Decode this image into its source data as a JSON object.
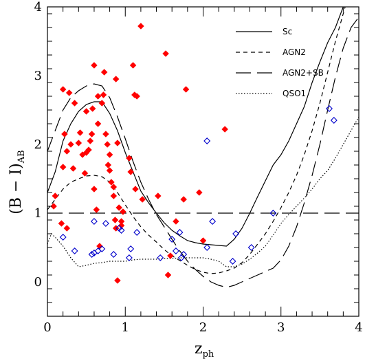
{
  "chart_data": {
    "type": "scatter",
    "xlim": [
      0,
      4
    ],
    "ylim": [
      -0.5,
      4
    ],
    "xlabel": "z",
    "xlabel_sub": "ph",
    "ylabel": "(B − I)",
    "ylabel_sub": "AB",
    "x_ticks": [
      0,
      1,
      2,
      3,
      4
    ],
    "y_ticks": [
      0,
      1,
      2,
      3,
      4
    ],
    "x_tick_labels": [
      "0",
      "1",
      "2",
      "3",
      "4"
    ],
    "y_tick_labels": [
      "0",
      "1",
      "2",
      "3",
      "4"
    ],
    "grid": false,
    "legend_position": "top-right",
    "colors": {
      "red_points": "#ff0000",
      "blue_points": "#0000cc",
      "lines": "#000000"
    },
    "reference_line": {
      "y": 1.0,
      "style": "long-dash"
    },
    "series": [
      {
        "name": "Sc",
        "kind": "line",
        "style": "solid",
        "points": [
          [
            0,
            1.3
          ],
          [
            0.1,
            1.6
          ],
          [
            0.2,
            2.05
          ],
          [
            0.3,
            2.3
          ],
          [
            0.4,
            2.48
          ],
          [
            0.5,
            2.58
          ],
          [
            0.6,
            2.62
          ],
          [
            0.7,
            2.62
          ],
          [
            0.8,
            2.45
          ],
          [
            0.9,
            2.2
          ],
          [
            1.0,
            1.88
          ],
          [
            1.1,
            1.6
          ],
          [
            1.2,
            1.32
          ],
          [
            1.3,
            1.15
          ],
          [
            1.4,
            1.0
          ],
          [
            1.5,
            0.86
          ],
          [
            1.6,
            0.75
          ],
          [
            1.7,
            0.67
          ],
          [
            1.8,
            0.6
          ],
          [
            1.9,
            0.57
          ],
          [
            2.0,
            0.55
          ],
          [
            2.1,
            0.54
          ],
          [
            2.2,
            0.53
          ],
          [
            2.3,
            0.52
          ],
          [
            2.4,
            0.62
          ],
          [
            2.5,
            0.78
          ],
          [
            2.6,
            1.0
          ],
          [
            2.7,
            1.24
          ],
          [
            2.8,
            1.47
          ],
          [
            2.9,
            1.7
          ],
          [
            3.0,
            1.85
          ],
          [
            3.1,
            2.05
          ],
          [
            3.2,
            2.3
          ],
          [
            3.3,
            2.55
          ],
          [
            3.4,
            2.9
          ],
          [
            3.5,
            3.2
          ],
          [
            3.6,
            3.48
          ],
          [
            3.7,
            3.7
          ],
          [
            3.8,
            4.0
          ]
        ]
      },
      {
        "name": "AGN2",
        "kind": "line",
        "style": "short-dash",
        "points": [
          [
            0,
            1.05
          ],
          [
            0.1,
            1.2
          ],
          [
            0.2,
            1.35
          ],
          [
            0.3,
            1.45
          ],
          [
            0.4,
            1.5
          ],
          [
            0.5,
            1.54
          ],
          [
            0.6,
            1.55
          ],
          [
            0.7,
            1.53
          ],
          [
            0.8,
            1.45
          ],
          [
            0.9,
            1.3
          ],
          [
            1.0,
            1.12
          ],
          [
            1.1,
            0.95
          ],
          [
            1.2,
            0.8
          ],
          [
            1.3,
            0.68
          ],
          [
            1.4,
            0.58
          ],
          [
            1.5,
            0.47
          ],
          [
            1.6,
            0.38
          ],
          [
            1.7,
            0.31
          ],
          [
            1.8,
            0.24
          ],
          [
            1.9,
            0.18
          ],
          [
            2.0,
            0.14
          ],
          [
            2.1,
            0.12
          ],
          [
            2.2,
            0.13
          ],
          [
            2.3,
            0.16
          ],
          [
            2.4,
            0.2
          ],
          [
            2.5,
            0.28
          ],
          [
            2.6,
            0.4
          ],
          [
            2.7,
            0.55
          ],
          [
            2.8,
            0.7
          ],
          [
            2.9,
            0.88
          ],
          [
            3.0,
            1.08
          ],
          [
            3.1,
            1.3
          ],
          [
            3.2,
            1.55
          ],
          [
            3.3,
            1.85
          ],
          [
            3.4,
            2.2
          ],
          [
            3.5,
            2.6
          ],
          [
            3.6,
            3.05
          ],
          [
            3.7,
            3.5
          ],
          [
            3.8,
            3.9
          ],
          [
            3.85,
            4.1
          ]
        ]
      },
      {
        "name": "AGN2+SB",
        "kind": "line",
        "style": "long-dash",
        "points": [
          [
            0,
            1.9
          ],
          [
            0.1,
            2.2
          ],
          [
            0.2,
            2.5
          ],
          [
            0.3,
            2.68
          ],
          [
            0.4,
            2.78
          ],
          [
            0.5,
            2.85
          ],
          [
            0.6,
            2.88
          ],
          [
            0.7,
            2.85
          ],
          [
            0.8,
            2.68
          ],
          [
            0.9,
            2.4
          ],
          [
            1.0,
            2.08
          ],
          [
            1.1,
            1.75
          ],
          [
            1.2,
            1.45
          ],
          [
            1.3,
            1.2
          ],
          [
            1.4,
            0.98
          ],
          [
            1.5,
            0.8
          ],
          [
            1.6,
            0.62
          ],
          [
            1.7,
            0.45
          ],
          [
            1.8,
            0.3
          ],
          [
            1.9,
            0.18
          ],
          [
            2.0,
            0.08
          ],
          [
            2.1,
            0.0
          ],
          [
            2.2,
            -0.05
          ],
          [
            2.3,
            -0.08
          ],
          [
            2.4,
            -0.05
          ],
          [
            2.5,
            0.0
          ],
          [
            2.6,
            0.05
          ],
          [
            2.7,
            0.1
          ],
          [
            2.8,
            0.15
          ],
          [
            2.9,
            0.2
          ],
          [
            3.0,
            0.32
          ],
          [
            3.1,
            0.52
          ],
          [
            3.2,
            0.8
          ],
          [
            3.3,
            1.15
          ],
          [
            3.4,
            1.55
          ],
          [
            3.5,
            2.0
          ],
          [
            3.6,
            2.5
          ],
          [
            3.7,
            2.98
          ],
          [
            3.8,
            3.4
          ],
          [
            3.9,
            3.7
          ],
          [
            4.0,
            3.85
          ]
        ]
      },
      {
        "name": "QSO1",
        "kind": "line",
        "style": "dotted",
        "points": [
          [
            0,
            0.55
          ],
          [
            0.05,
            0.7
          ],
          [
            0.1,
            0.65
          ],
          [
            0.2,
            0.52
          ],
          [
            0.3,
            0.35
          ],
          [
            0.4,
            0.22
          ],
          [
            0.5,
            0.24
          ],
          [
            0.6,
            0.27
          ],
          [
            0.7,
            0.28
          ],
          [
            0.8,
            0.3
          ],
          [
            0.9,
            0.3
          ],
          [
            1.0,
            0.3
          ],
          [
            1.1,
            0.32
          ],
          [
            1.2,
            0.33
          ],
          [
            1.3,
            0.33
          ],
          [
            1.4,
            0.33
          ],
          [
            1.5,
            0.34
          ],
          [
            1.6,
            0.34
          ],
          [
            1.7,
            0.35
          ],
          [
            1.8,
            0.35
          ],
          [
            1.9,
            0.35
          ],
          [
            2.0,
            0.35
          ],
          [
            2.1,
            0.33
          ],
          [
            2.2,
            0.3
          ],
          [
            2.3,
            0.22
          ],
          [
            2.4,
            0.22
          ],
          [
            2.5,
            0.26
          ],
          [
            2.6,
            0.33
          ],
          [
            2.7,
            0.42
          ],
          [
            2.8,
            0.52
          ],
          [
            2.9,
            0.68
          ],
          [
            3.0,
            0.85
          ],
          [
            3.1,
            0.98
          ],
          [
            3.2,
            1.1
          ],
          [
            3.3,
            1.22
          ],
          [
            3.4,
            1.35
          ],
          [
            3.5,
            1.5
          ],
          [
            3.6,
            1.62
          ],
          [
            3.7,
            1.8
          ],
          [
            3.8,
            2.0
          ],
          [
            3.9,
            2.2
          ],
          [
            4.0,
            2.4
          ]
        ]
      },
      {
        "kind": "points",
        "marker": "filled-diamond",
        "color": "#ff0000",
        "points": [
          [
            0.08,
            1.1
          ],
          [
            0.1,
            1.25
          ],
          [
            0.18,
            0.85
          ],
          [
            0.2,
            1.67
          ],
          [
            0.2,
            2.8
          ],
          [
            0.22,
            2.15
          ],
          [
            0.25,
            1.9
          ],
          [
            0.25,
            0.78
          ],
          [
            0.28,
            2.75
          ],
          [
            0.3,
            2.0
          ],
          [
            0.33,
            1.65
          ],
          [
            0.35,
            2.6
          ],
          [
            0.4,
            2.02
          ],
          [
            0.42,
            2.17
          ],
          [
            0.45,
            1.85
          ],
          [
            0.48,
            1.58
          ],
          [
            0.5,
            2.48
          ],
          [
            0.5,
            1.88
          ],
          [
            0.53,
            1.92
          ],
          [
            0.55,
            2.05
          ],
          [
            0.57,
            2.15
          ],
          [
            0.58,
            2.52
          ],
          [
            0.6,
            3.15
          ],
          [
            0.6,
            1.35
          ],
          [
            0.63,
            1.05
          ],
          [
            0.65,
            2.7
          ],
          [
            0.65,
            2.3
          ],
          [
            0.67,
            0.52
          ],
          [
            0.7,
            2.6
          ],
          [
            0.72,
            2.72
          ],
          [
            0.73,
            3.05
          ],
          [
            0.75,
            2.15
          ],
          [
            0.77,
            2.0
          ],
          [
            0.78,
            1.7
          ],
          [
            0.8,
            1.85
          ],
          [
            0.8,
            1.62
          ],
          [
            0.82,
            1.45
          ],
          [
            0.85,
            1.38
          ],
          [
            0.85,
            1.25
          ],
          [
            0.87,
            0.9
          ],
          [
            0.88,
            2.95
          ],
          [
            0.88,
            0.78
          ],
          [
            0.9,
            0.02
          ],
          [
            0.9,
            2.02
          ],
          [
            0.92,
            1.08
          ],
          [
            0.95,
            0.88
          ],
          [
            0.95,
            0.82
          ],
          [
            0.97,
            1.02
          ],
          [
            1.05,
            1.8
          ],
          [
            1.07,
            1.6
          ],
          [
            1.1,
            3.15
          ],
          [
            1.12,
            2.72
          ],
          [
            1.13,
            1.35
          ],
          [
            1.15,
            2.7
          ],
          [
            1.2,
            3.72
          ],
          [
            1.22,
            1.2
          ],
          [
            1.42,
            1.25
          ],
          [
            1.52,
            3.32
          ],
          [
            1.55,
            0.1
          ],
          [
            1.58,
            0.38
          ],
          [
            1.65,
            0.88
          ],
          [
            1.75,
            1.2
          ],
          [
            1.78,
            2.8
          ],
          [
            1.95,
            1.3
          ],
          [
            2.0,
            0.6
          ],
          [
            2.28,
            2.22
          ]
        ]
      },
      {
        "kind": "points",
        "marker": "open-diamond",
        "color": "#0000cc",
        "points": [
          [
            0.2,
            0.65
          ],
          [
            0.35,
            0.45
          ],
          [
            0.57,
            0.4
          ],
          [
            0.6,
            0.42
          ],
          [
            0.6,
            0.88
          ],
          [
            0.65,
            0.45
          ],
          [
            0.7,
            0.48
          ],
          [
            0.75,
            0.85
          ],
          [
            0.85,
            0.4
          ],
          [
            0.92,
            0.78
          ],
          [
            0.95,
            0.75
          ],
          [
            1.05,
            0.35
          ],
          [
            1.07,
            0.48
          ],
          [
            1.15,
            0.72
          ],
          [
            1.45,
            0.35
          ],
          [
            1.6,
            0.62
          ],
          [
            1.65,
            0.45
          ],
          [
            1.7,
            0.72
          ],
          [
            1.72,
            0.35
          ],
          [
            1.75,
            0.4
          ],
          [
            2.05,
            2.05
          ],
          [
            2.05,
            0.5
          ],
          [
            2.12,
            0.88
          ],
          [
            2.38,
            0.3
          ],
          [
            2.42,
            0.7
          ],
          [
            2.62,
            0.5
          ],
          [
            2.9,
            1.0
          ],
          [
            3.62,
            2.52
          ],
          [
            3.68,
            2.35
          ]
        ]
      }
    ]
  }
}
